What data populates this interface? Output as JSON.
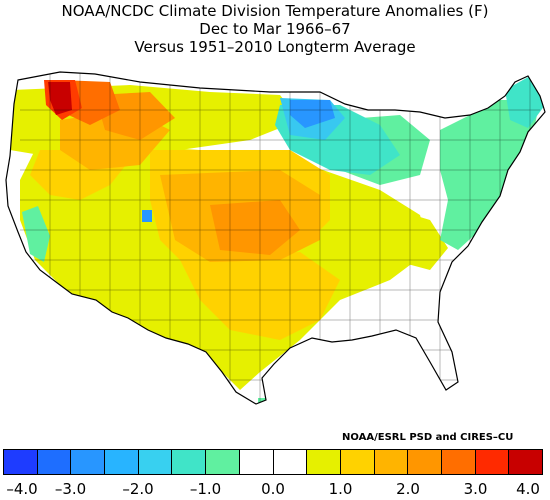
{
  "title": {
    "line1": "NOAA/NCDC Climate Division Temperature Anomalies (F)",
    "line2": "Dec to Mar 1966–67",
    "line3": "Versus 1951–2010 Longterm Average"
  },
  "credit": "NOAA/ESRL PSD and CIRES–CU",
  "legend": {
    "colors": [
      "#1e3cff",
      "#1e6eff",
      "#2896ff",
      "#28b4ff",
      "#38d0f0",
      "#40e4c8",
      "#60f0a0",
      "#ffffff",
      "#ffffff",
      "#e6f000",
      "#ffd200",
      "#ffb400",
      "#ff9600",
      "#ff6e00",
      "#ff2a00",
      "#c80000"
    ],
    "ticks": [
      "–4.0",
      "–3.0",
      "–2.0",
      "–1.0",
      "0.0",
      "1.0",
      "2.0",
      "3.0",
      "4.0"
    ]
  },
  "map_colors": {
    "cool3": "#2896ff",
    "cool2": "#38c8f0",
    "cool1": "#40e4c8",
    "cool0": "#60f0a0",
    "neutral": "#ffffff",
    "warm1": "#e6f000",
    "warm2": "#ffd200",
    "warm3": "#ffb400",
    "warm4": "#ff9600",
    "warm5": "#ff6e00",
    "warm6": "#ff3c00",
    "warm7": "#c80000"
  }
}
